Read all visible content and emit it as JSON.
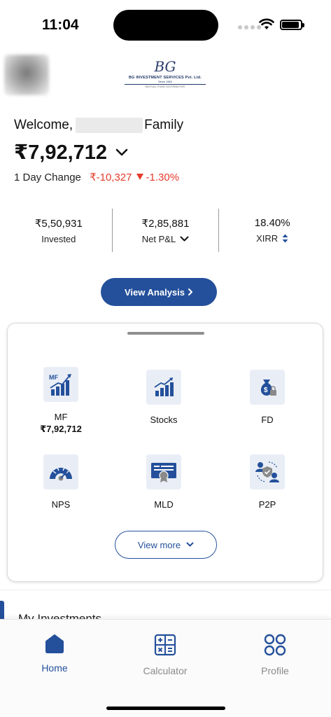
{
  "status_bar": {
    "time": "11:04"
  },
  "welcome": {
    "prefix": "Welcome,",
    "suffix": "Family"
  },
  "portfolio": {
    "total": "₹7,92,712",
    "day_change_label": "1 Day Change",
    "day_change_value": "₹-10,327",
    "day_change_pct": "-1.30%"
  },
  "stats": [
    {
      "value": "₹5,50,931",
      "label": "Invested"
    },
    {
      "value": "₹2,85,881",
      "label": "Net P&L"
    },
    {
      "value": "18.40%",
      "label": "XIRR"
    }
  ],
  "view_analysis_label": "View Analysis",
  "logo": {
    "mark": "BG",
    "name": "BG INVESTMENT SERVICES Pvt. Ltd.",
    "since": "Since 1962",
    "tagline": "MUTUAL FUND DISTRIBUTOR"
  },
  "tiles": [
    {
      "label": "MF",
      "sub": "₹7,92,712",
      "icon": "mf-chart-icon"
    },
    {
      "label": "Stocks",
      "icon": "stocks-chart-icon"
    },
    {
      "label": "FD",
      "icon": "money-bag-lock-icon"
    },
    {
      "label": "NPS",
      "icon": "gauge-icon"
    },
    {
      "label": "MLD",
      "icon": "certificate-icon"
    },
    {
      "label": "P2P",
      "icon": "users-shield-icon"
    }
  ],
  "view_more_label": "View more",
  "section_title": "My Investments",
  "bottom_nav": [
    {
      "label": "Home",
      "icon": "home-icon",
      "active": true
    },
    {
      "label": "Calculator",
      "icon": "calculator-icon",
      "active": false
    },
    {
      "label": "Profile",
      "icon": "profile-grid-icon",
      "active": false
    }
  ],
  "colors": {
    "primary": "#24509b",
    "negative": "#e53b2c",
    "icon_bg": "#e9eef6",
    "inactive": "#8a8a8a"
  }
}
